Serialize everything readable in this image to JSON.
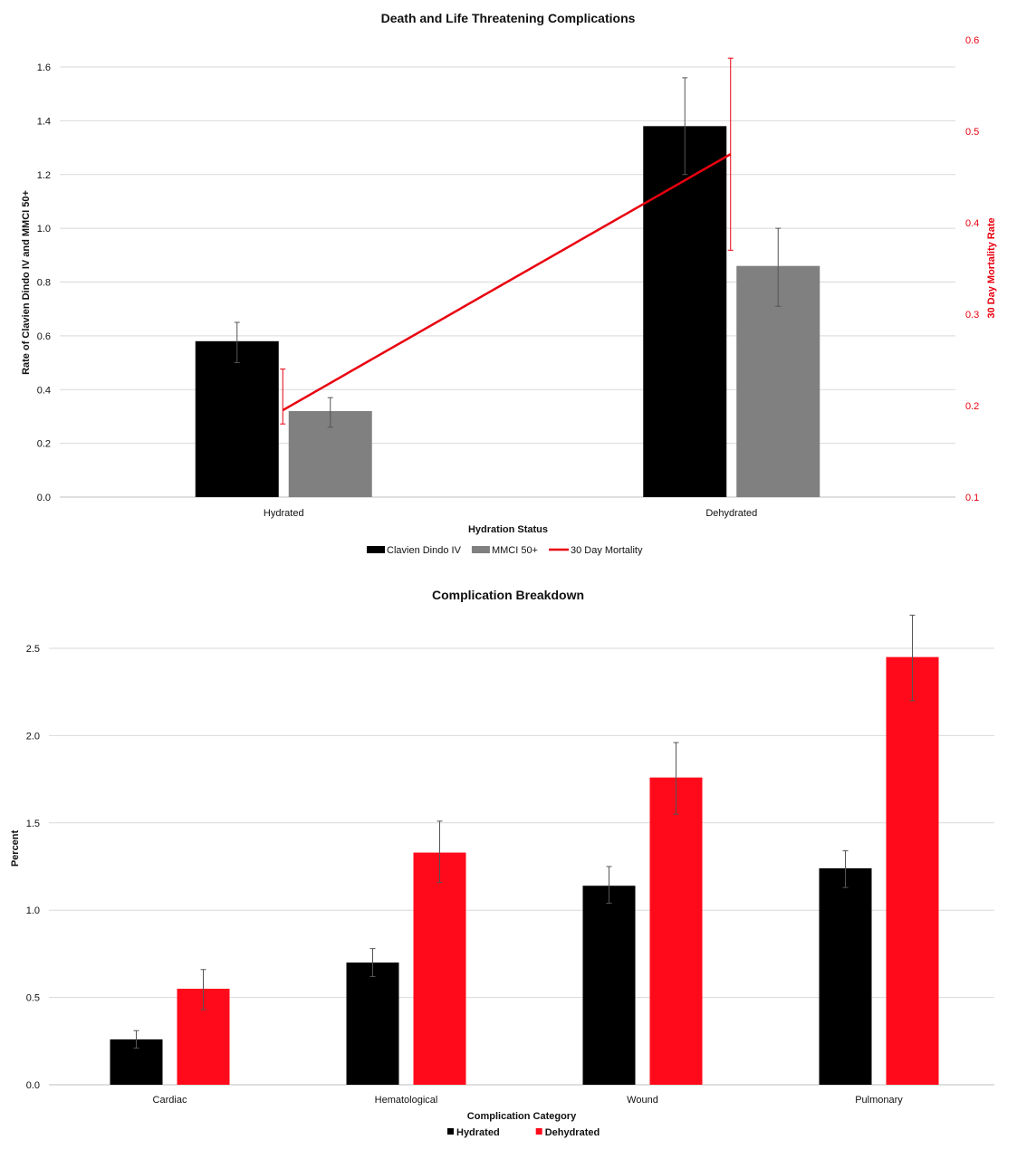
{
  "chart_data": [
    {
      "type": "bar",
      "title": "Death and Life Threatening Complications",
      "xlabel": "Hydration Status",
      "ylabel": "Rate of Clavien Dindo IV and MMCI 50+",
      "y2label": "30 Day Mortality Rate",
      "ylim": [
        0,
        1.6
      ],
      "y2lim": [
        0.1,
        0.6
      ],
      "yticks": [
        "0.0",
        "0.2",
        "0.4",
        "0.6",
        "0.8",
        "1.0",
        "1.2",
        "1.4",
        "1.6"
      ],
      "y2ticks": [
        "0.1",
        "0.2",
        "0.3",
        "0.4",
        "0.5",
        "0.6"
      ],
      "grid": true,
      "legend": "bottom",
      "categories": [
        "Hydrated",
        "Dehydrated"
      ],
      "series": [
        {
          "name": "Clavien Dindo IV",
          "type": "bar",
          "color": "#000000",
          "values": [
            0.58,
            1.38
          ],
          "err_low": [
            0.5,
            1.2
          ],
          "err_high": [
            0.65,
            1.56
          ]
        },
        {
          "name": "MMCI 50+",
          "type": "bar",
          "color": "#808080",
          "values": [
            0.32,
            0.86
          ],
          "err_low": [
            0.26,
            0.71
          ],
          "err_high": [
            0.37,
            1.0
          ]
        },
        {
          "name": "30 Day Mortality",
          "type": "line",
          "axis": "right",
          "color": "#e8000f",
          "values": [
            0.195,
            0.475
          ],
          "err_low": [
            0.18,
            0.37
          ],
          "err_high": [
            0.24,
            0.58
          ]
        }
      ]
    },
    {
      "type": "bar",
      "title": "Complication Breakdown",
      "xlabel": "Complication Category",
      "ylabel": "Percent",
      "ylim": [
        0,
        2.5
      ],
      "yticks": [
        "0.0",
        "0.5",
        "1.0",
        "1.5",
        "2.0",
        "2.5"
      ],
      "grid": true,
      "legend": "bottom",
      "categories": [
        "Cardiac",
        "Hematological",
        "Wound",
        "Pulmonary"
      ],
      "series": [
        {
          "name": "Hydrated",
          "color": "#000000",
          "values": [
            0.26,
            0.7,
            1.14,
            1.24
          ],
          "err_low": [
            0.21,
            0.62,
            1.04,
            1.13
          ],
          "err_high": [
            0.31,
            0.78,
            1.25,
            1.34
          ]
        },
        {
          "name": "Dehydrated",
          "color": "#ff0a1a",
          "values": [
            0.55,
            1.33,
            1.76,
            2.45
          ],
          "err_low": [
            0.43,
            1.16,
            1.55,
            2.2
          ],
          "err_high": [
            0.66,
            1.51,
            1.96,
            2.69
          ]
        }
      ]
    }
  ]
}
